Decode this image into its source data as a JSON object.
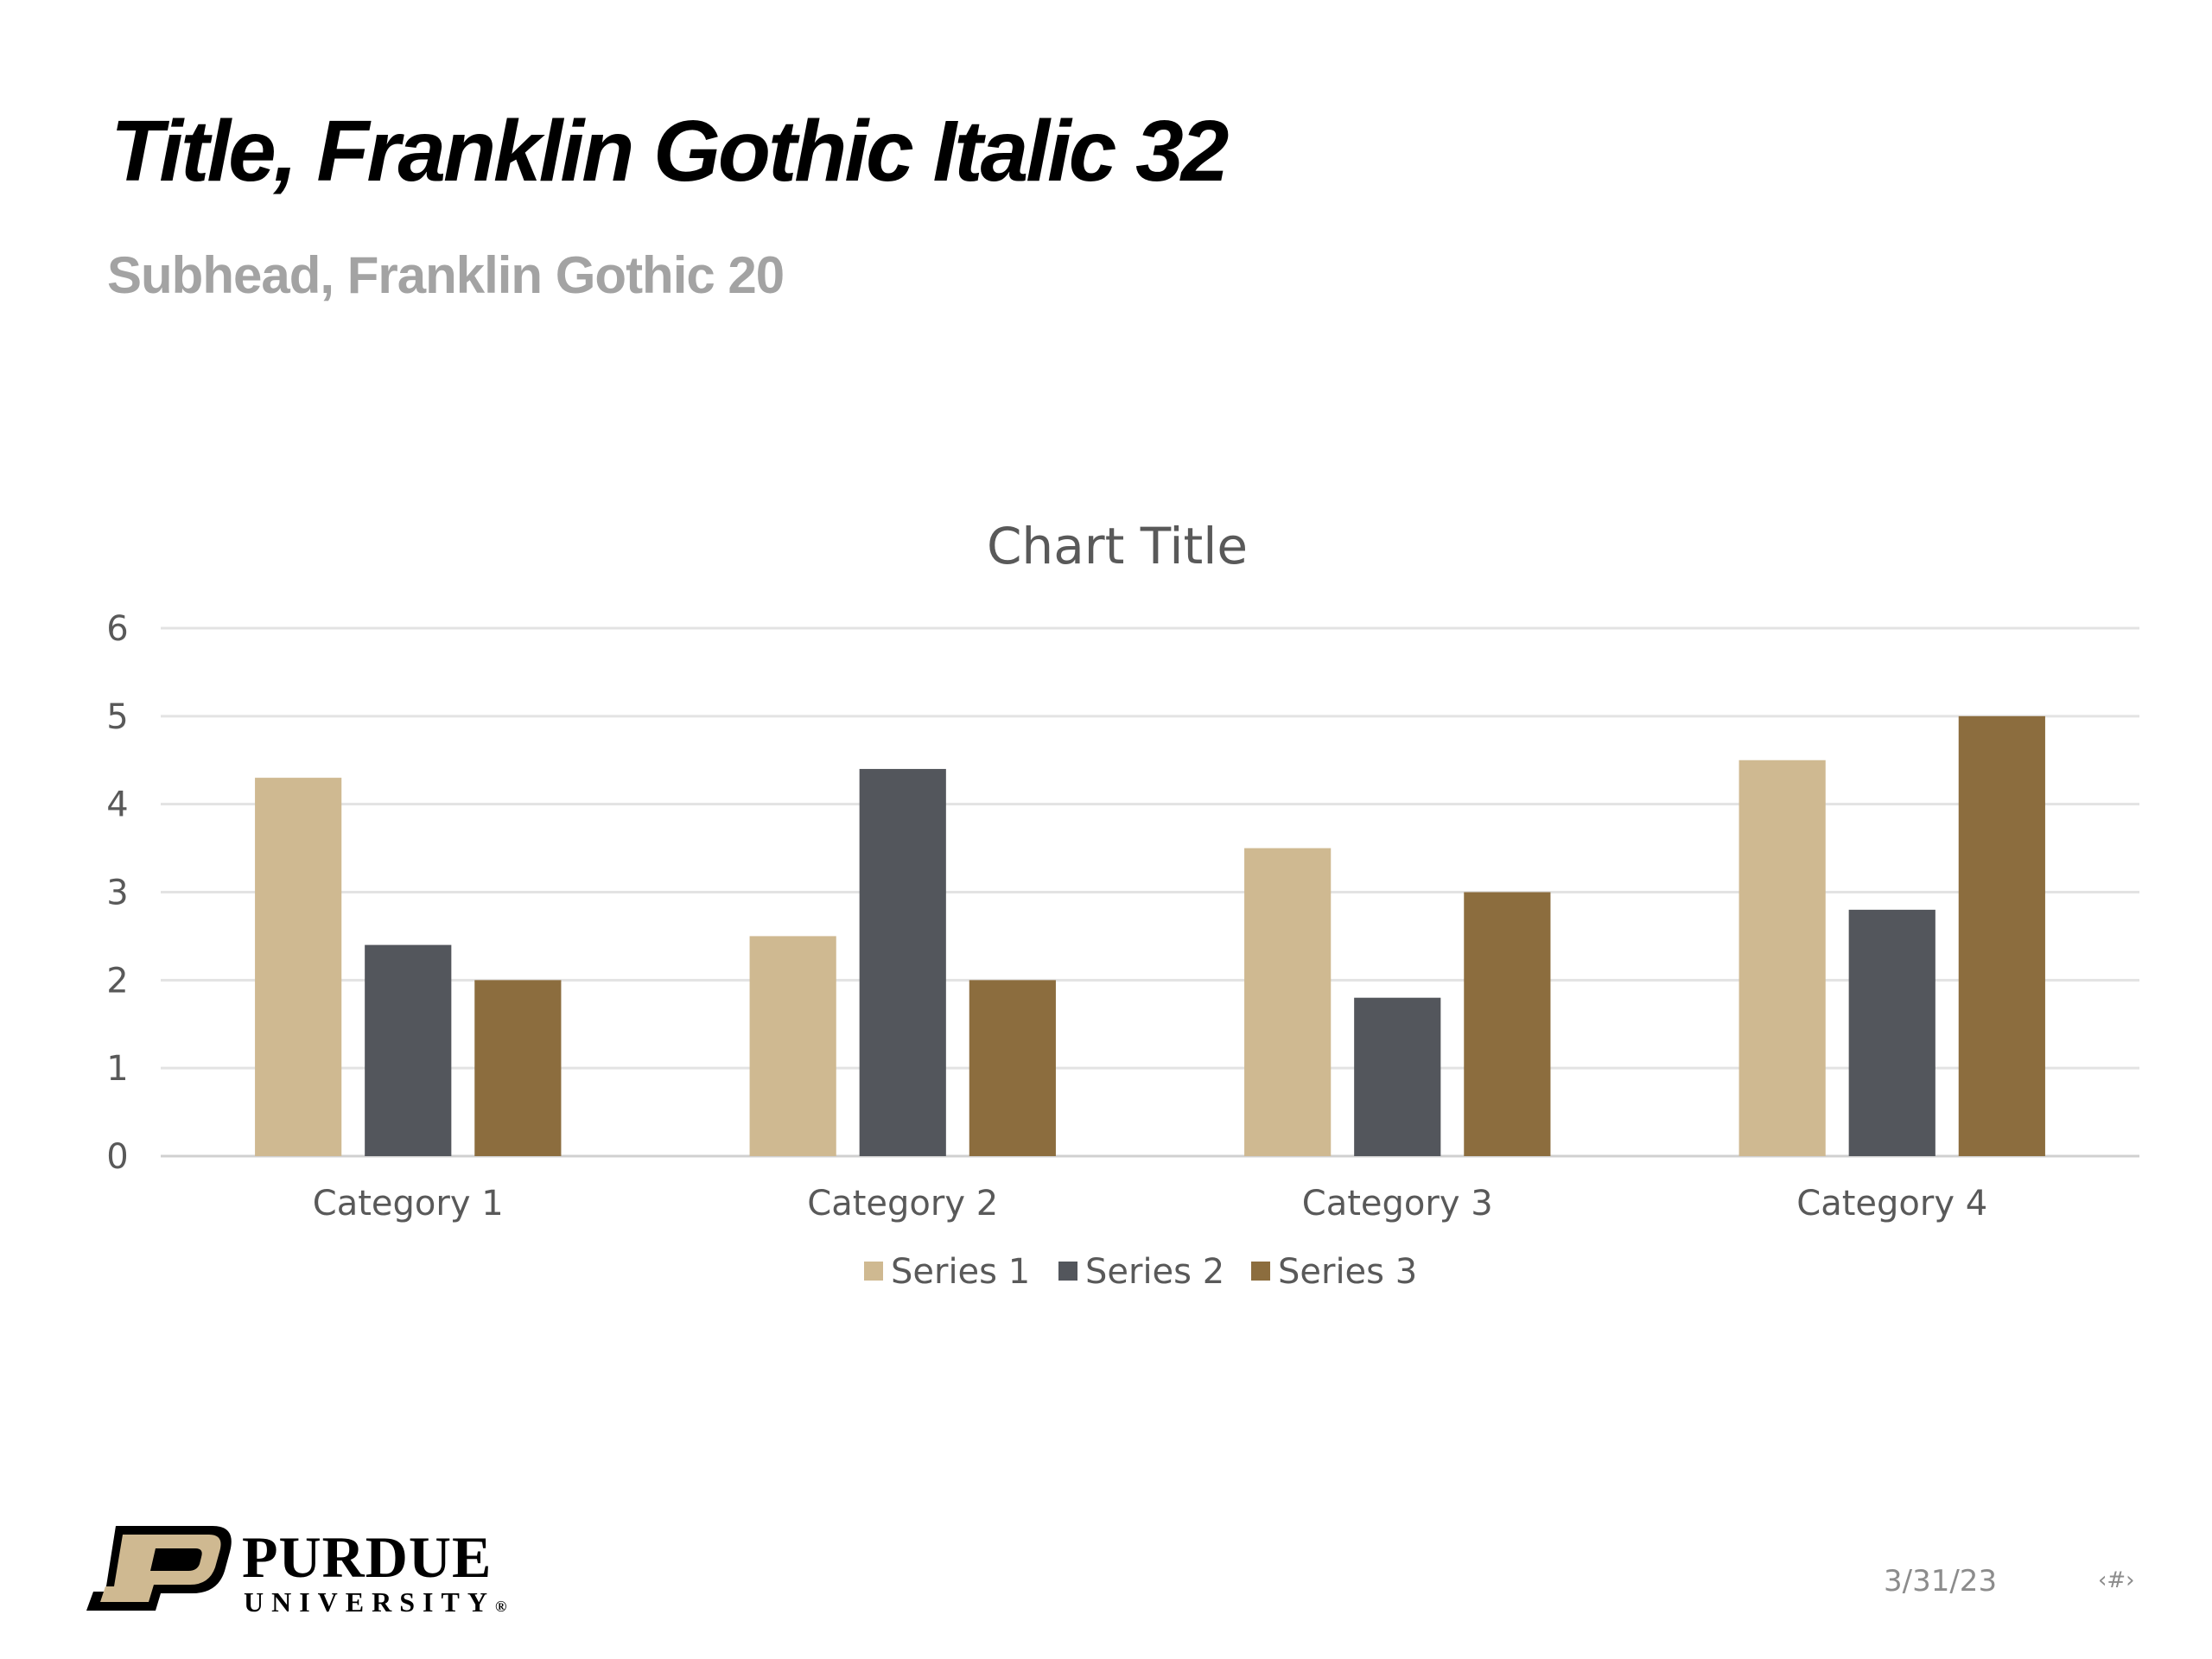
{
  "slide": {
    "title": "Title, Franklin Gothic Italic 32",
    "subtitle": "Subhead, Franklin Gothic 20"
  },
  "footer": {
    "date": "3/31/23",
    "slide_number": "‹#›"
  },
  "logo": {
    "wordmark": "PURDUE",
    "subtext": "UNIVERSITY",
    "reg_mark": "®",
    "colors": {
      "gold": "#cfb991",
      "black": "#000000"
    }
  },
  "chart_data": {
    "type": "bar",
    "title": "Chart Title",
    "categories": [
      "Category 1",
      "Category 2",
      "Category 3",
      "Category 4"
    ],
    "series": [
      {
        "name": "Series 1",
        "values": [
          4.3,
          2.5,
          3.5,
          4.5
        ],
        "color": "#cfb991"
      },
      {
        "name": "Series 2",
        "values": [
          2.4,
          4.4,
          1.8,
          2.8
        ],
        "color": "#53565c"
      },
      {
        "name": "Series 3",
        "values": [
          2,
          2,
          3,
          5
        ],
        "color": "#8c6d3e"
      }
    ],
    "ylim": [
      0,
      6
    ],
    "yticks": [
      0,
      1,
      2,
      3,
      4,
      5,
      6
    ],
    "grid": true,
    "legend": "bottom"
  }
}
